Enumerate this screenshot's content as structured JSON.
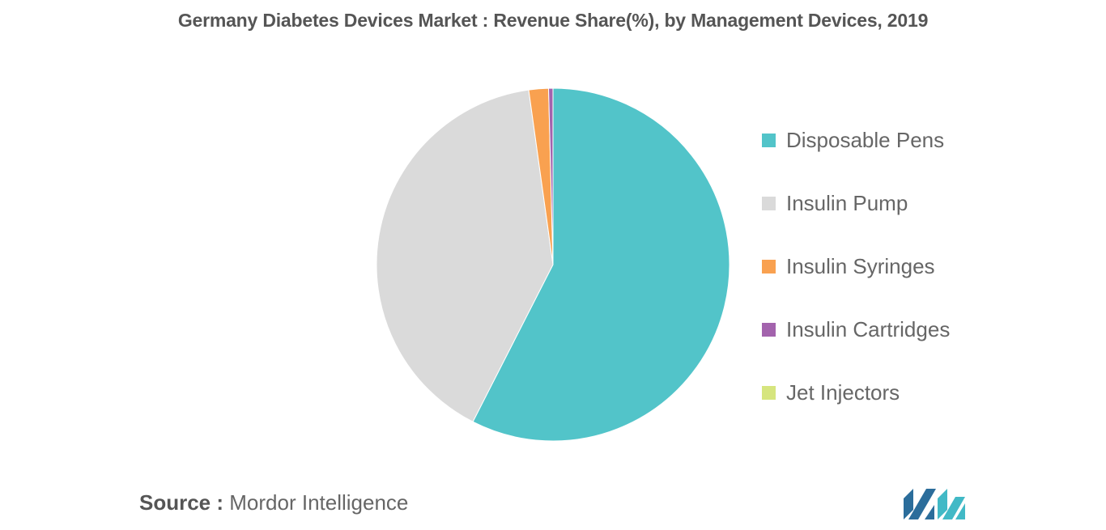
{
  "chart_data": {
    "type": "pie",
    "title": "Germany Diabetes Devices Market : Revenue Share(%), by Management Devices, 2019",
    "slices": [
      {
        "label": "Disposable Pens",
        "value": 57.5,
        "color": "#52C4C9"
      },
      {
        "label": "Insulin Pump",
        "value": 40.3,
        "color": "#DADADA"
      },
      {
        "label": "Insulin Syringes",
        "value": 1.8,
        "color": "#F9A150"
      },
      {
        "label": "Insulin Cartridges",
        "value": 0.4,
        "color": "#A363AD"
      },
      {
        "label": "Jet Injectors",
        "value": 0.0,
        "color": "#D6E57E"
      }
    ],
    "legend_position": "right"
  },
  "source": {
    "key": "Source :",
    "value": "Mordor Intelligence"
  },
  "logo": {
    "name": "mordor-intelligence-logo",
    "colors": [
      "#2B6D9B",
      "#41B9C6"
    ]
  }
}
